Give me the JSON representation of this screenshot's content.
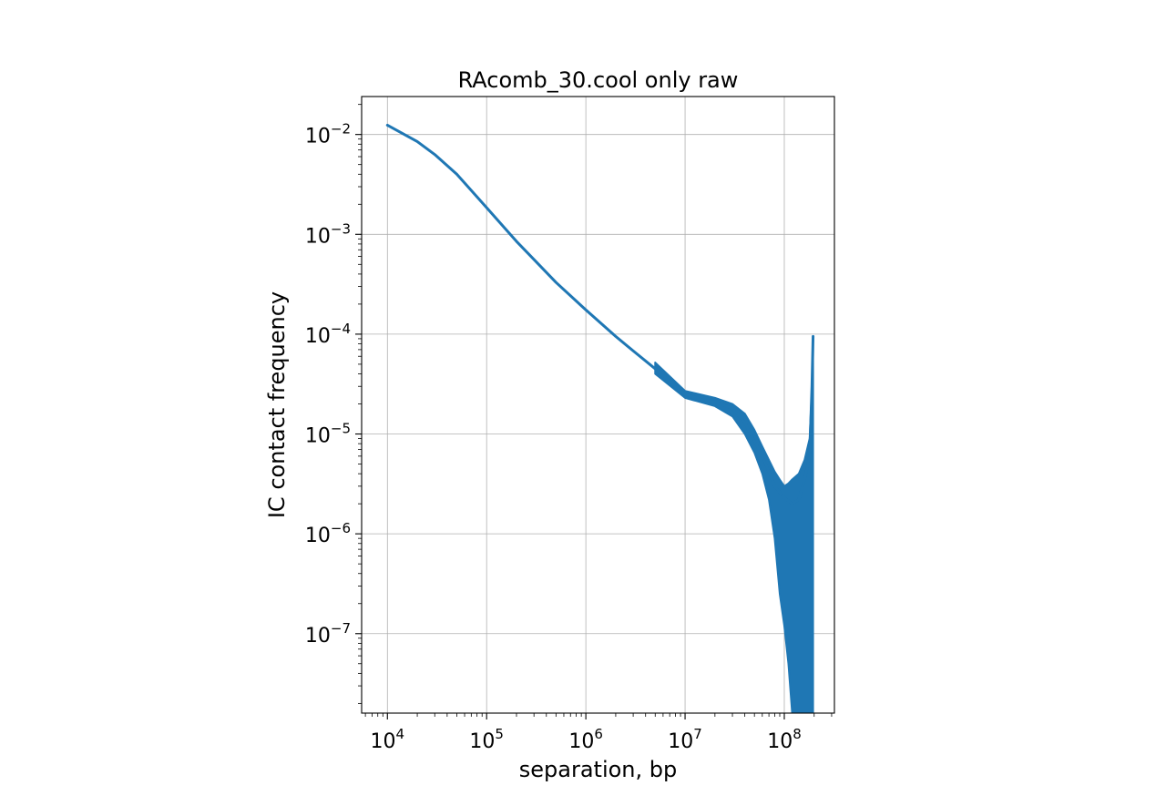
{
  "chart_data": {
    "type": "line",
    "title": "RAcomb_30.cool only raw",
    "xlabel": "separation, bp",
    "ylabel": "IC contact frequency",
    "xscale": "log",
    "yscale": "log",
    "xlim": [
      5500,
      320000000
    ],
    "ylim": [
      1.6e-08,
      0.024
    ],
    "grid": true,
    "x_ticks": [
      {
        "base": "10",
        "exp": "4",
        "value": 10000
      },
      {
        "base": "10",
        "exp": "5",
        "value": 100000
      },
      {
        "base": "10",
        "exp": "6",
        "value": 1000000
      },
      {
        "base": "10",
        "exp": "7",
        "value": 10000000
      },
      {
        "base": "10",
        "exp": "8",
        "value": 100000000
      }
    ],
    "y_ticks": [
      {
        "base": "10",
        "exp": "−7",
        "value": 1e-07
      },
      {
        "base": "10",
        "exp": "−6",
        "value": 1e-06
      },
      {
        "base": "10",
        "exp": "−5",
        "value": 1e-05
      },
      {
        "base": "10",
        "exp": "−4",
        "value": 0.0001
      },
      {
        "base": "10",
        "exp": "−3",
        "value": 0.001
      },
      {
        "base": "10",
        "exp": "−2",
        "value": 0.01
      }
    ],
    "series": [
      {
        "color": "#1f77b4",
        "points": [
          [
            10000,
            0.0124
          ],
          [
            20000,
            0.0085
          ],
          [
            30000,
            0.0063
          ],
          [
            50000,
            0.004
          ],
          [
            100000,
            0.00185
          ],
          [
            200000,
            0.00085
          ],
          [
            300000,
            0.00056
          ],
          [
            500000,
            0.00033
          ],
          [
            1000000,
            0.000175
          ],
          [
            2000000,
            9.5e-05
          ],
          [
            3000000,
            6.8e-05
          ],
          [
            5000000,
            4.5e-05
          ],
          [
            8000000,
            3e-05
          ],
          [
            10000000,
            2.5e-05
          ],
          [
            15000000,
            2.2e-05
          ],
          [
            20000000,
            2.1e-05
          ],
          [
            30000000,
            1.8e-05
          ],
          [
            40000000,
            1.3e-05
          ],
          [
            50000000,
            8.5e-06
          ],
          [
            60000000,
            6e-06
          ],
          [
            70000000,
            4.2e-06
          ],
          [
            80000000,
            3e-06
          ],
          [
            100000000,
            2.3e-06
          ],
          [
            120000000,
            2e-06
          ],
          [
            140000000,
            2.2e-06
          ],
          [
            160000000,
            3.5e-06
          ],
          [
            180000000,
            6e-06
          ],
          [
            190000000,
            3e-05
          ],
          [
            195000000,
            9.5e-05
          ]
        ],
        "noise_bands": [
          [
            5000000,
            5.2e-05,
            4e-05
          ],
          [
            10000000,
            2.7e-05,
            2.3e-05
          ],
          [
            20000000,
            2.3e-05,
            1.9e-05
          ],
          [
            30000000,
            2e-05,
            1.5e-05
          ],
          [
            40000000,
            1.6e-05,
            1e-05
          ],
          [
            50000000,
            1.1e-05,
            6.5e-06
          ],
          [
            60000000,
            7.5e-06,
            4e-06
          ],
          [
            70000000,
            5.5e-06,
            2.2e-06
          ],
          [
            80000000,
            4.2e-06,
            9e-07
          ],
          [
            90000000,
            3.5e-06,
            2.5e-07
          ],
          [
            100000000,
            3e-06,
            1.2e-07
          ],
          [
            110000000,
            3.2e-06,
            5e-08
          ],
          [
            120000000,
            3.5e-06,
            1.6e-08
          ],
          [
            140000000,
            4e-06,
            1.6e-08
          ],
          [
            160000000,
            5.5e-06,
            1.6e-08
          ],
          [
            180000000,
            9e-06,
            1.6e-08
          ],
          [
            190000000,
            3e-05,
            1.6e-08
          ],
          [
            195000000,
            9.5e-05,
            1.6e-08
          ]
        ]
      }
    ]
  }
}
